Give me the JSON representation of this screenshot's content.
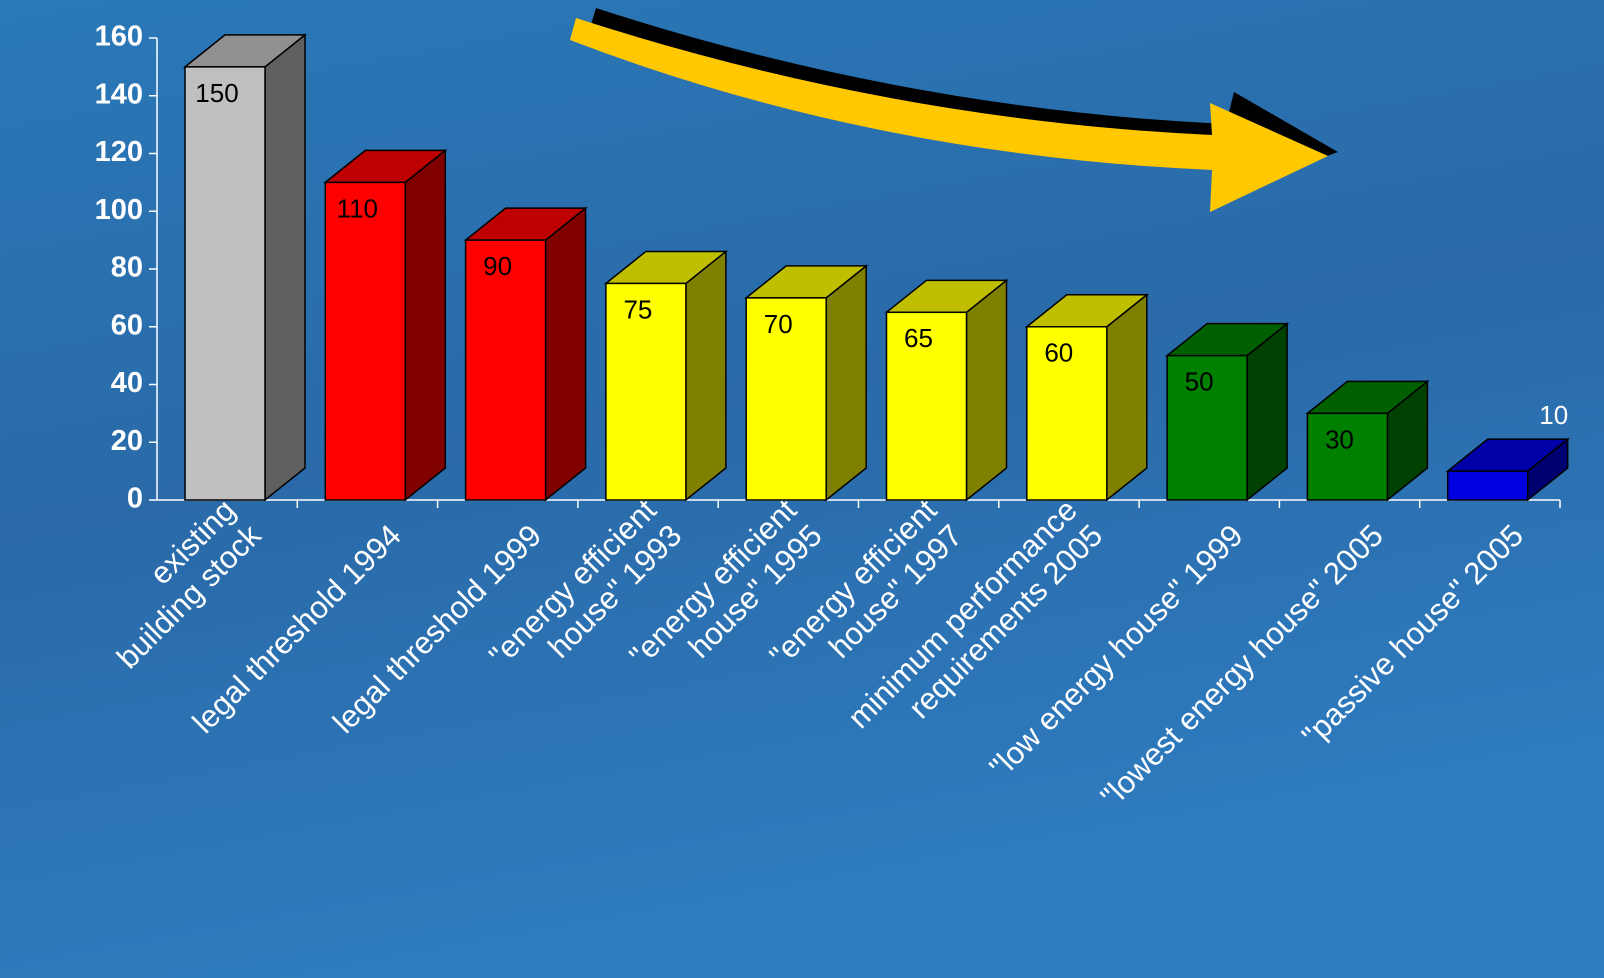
{
  "chart_data": {
    "type": "bar3d",
    "categories": [
      "existing\nbuilding stock",
      "legal threshold 1994",
      "legal threshold 1999",
      "\"energy efficient\nhouse\" 1993",
      "\"energy efficient\nhouse\" 1995",
      "\"energy efficient\nhouse\" 1997",
      "minimum performance\nrequirements 2005",
      "\"low energy house\" 1999",
      "\"lowest energy house\" 2005",
      "\"passive house\" 2005"
    ],
    "values": [
      150,
      110,
      90,
      75,
      70,
      65,
      60,
      50,
      30,
      10
    ],
    "colors": [
      "#c0c0c0",
      "#ff0000",
      "#ff0000",
      "#ffff00",
      "#ffff00",
      "#ffff00",
      "#ffff00",
      "#008000",
      "#008000",
      "#0000e0"
    ],
    "ylim": [
      0,
      160
    ],
    "yticks": [
      0,
      20,
      40,
      60,
      80,
      100,
      120,
      140,
      160
    ]
  }
}
